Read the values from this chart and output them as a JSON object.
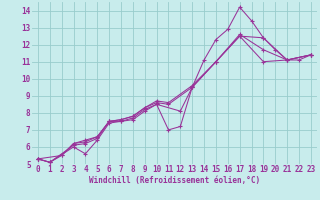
{
  "xlabel": "Windchill (Refroidissement éolien,°C)",
  "xlim": [
    -0.5,
    23.5
  ],
  "ylim": [
    5,
    14.5
  ],
  "xticks": [
    0,
    1,
    2,
    3,
    4,
    5,
    6,
    7,
    8,
    9,
    10,
    11,
    12,
    13,
    14,
    15,
    16,
    17,
    18,
    19,
    20,
    21,
    22,
    23
  ],
  "yticks": [
    5,
    6,
    7,
    8,
    9,
    10,
    11,
    12,
    13,
    14
  ],
  "bg_color": "#c8ecec",
  "line_color": "#993399",
  "grid_color": "#99cccc",
  "line1": [
    [
      0,
      5.3
    ],
    [
      1,
      5.1
    ],
    [
      3,
      6.1
    ],
    [
      4,
      6.2
    ],
    [
      5,
      6.5
    ],
    [
      6,
      7.5
    ],
    [
      7,
      7.5
    ],
    [
      8,
      7.6
    ],
    [
      9,
      8.1
    ],
    [
      10,
      8.5
    ],
    [
      11,
      7.0
    ],
    [
      12,
      7.2
    ],
    [
      13,
      9.5
    ],
    [
      14,
      11.1
    ],
    [
      15,
      12.3
    ],
    [
      16,
      12.9
    ],
    [
      17,
      14.2
    ],
    [
      18,
      13.4
    ],
    [
      19,
      12.4
    ],
    [
      20,
      11.7
    ],
    [
      21,
      11.1
    ],
    [
      22,
      11.1
    ],
    [
      23,
      11.4
    ]
  ],
  "line2": [
    [
      0,
      5.3
    ],
    [
      1,
      5.1
    ],
    [
      3,
      6.0
    ],
    [
      4,
      5.6
    ],
    [
      5,
      6.4
    ],
    [
      6,
      7.4
    ],
    [
      7,
      7.5
    ],
    [
      8,
      7.7
    ],
    [
      9,
      8.2
    ],
    [
      10,
      8.5
    ],
    [
      12,
      8.1
    ],
    [
      13,
      9.5
    ],
    [
      15,
      11.0
    ],
    [
      17,
      12.5
    ],
    [
      19,
      12.4
    ],
    [
      21,
      11.1
    ],
    [
      23,
      11.4
    ]
  ],
  "line3": [
    [
      0,
      5.3
    ],
    [
      2,
      5.5
    ],
    [
      3,
      6.2
    ],
    [
      4,
      6.3
    ],
    [
      5,
      6.6
    ],
    [
      6,
      7.5
    ],
    [
      7,
      7.6
    ],
    [
      8,
      7.8
    ],
    [
      9,
      8.3
    ],
    [
      10,
      8.6
    ],
    [
      11,
      8.5
    ],
    [
      13,
      9.5
    ],
    [
      15,
      11.0
    ],
    [
      17,
      12.6
    ],
    [
      19,
      11.7
    ],
    [
      21,
      11.1
    ],
    [
      23,
      11.4
    ]
  ],
  "line4": [
    [
      0,
      5.3
    ],
    [
      1,
      5.1
    ],
    [
      2,
      5.5
    ],
    [
      3,
      6.2
    ],
    [
      4,
      6.4
    ],
    [
      5,
      6.6
    ],
    [
      6,
      7.5
    ],
    [
      7,
      7.6
    ],
    [
      8,
      7.8
    ],
    [
      9,
      8.3
    ],
    [
      10,
      8.7
    ],
    [
      11,
      8.6
    ],
    [
      13,
      9.6
    ],
    [
      15,
      11.0
    ],
    [
      17,
      12.5
    ],
    [
      19,
      11.0
    ],
    [
      21,
      11.1
    ],
    [
      23,
      11.4
    ]
  ],
  "xlabel_fontsize": 5.5,
  "tick_fontsize": 5.5,
  "linewidth": 0.75,
  "markersize": 3.5
}
